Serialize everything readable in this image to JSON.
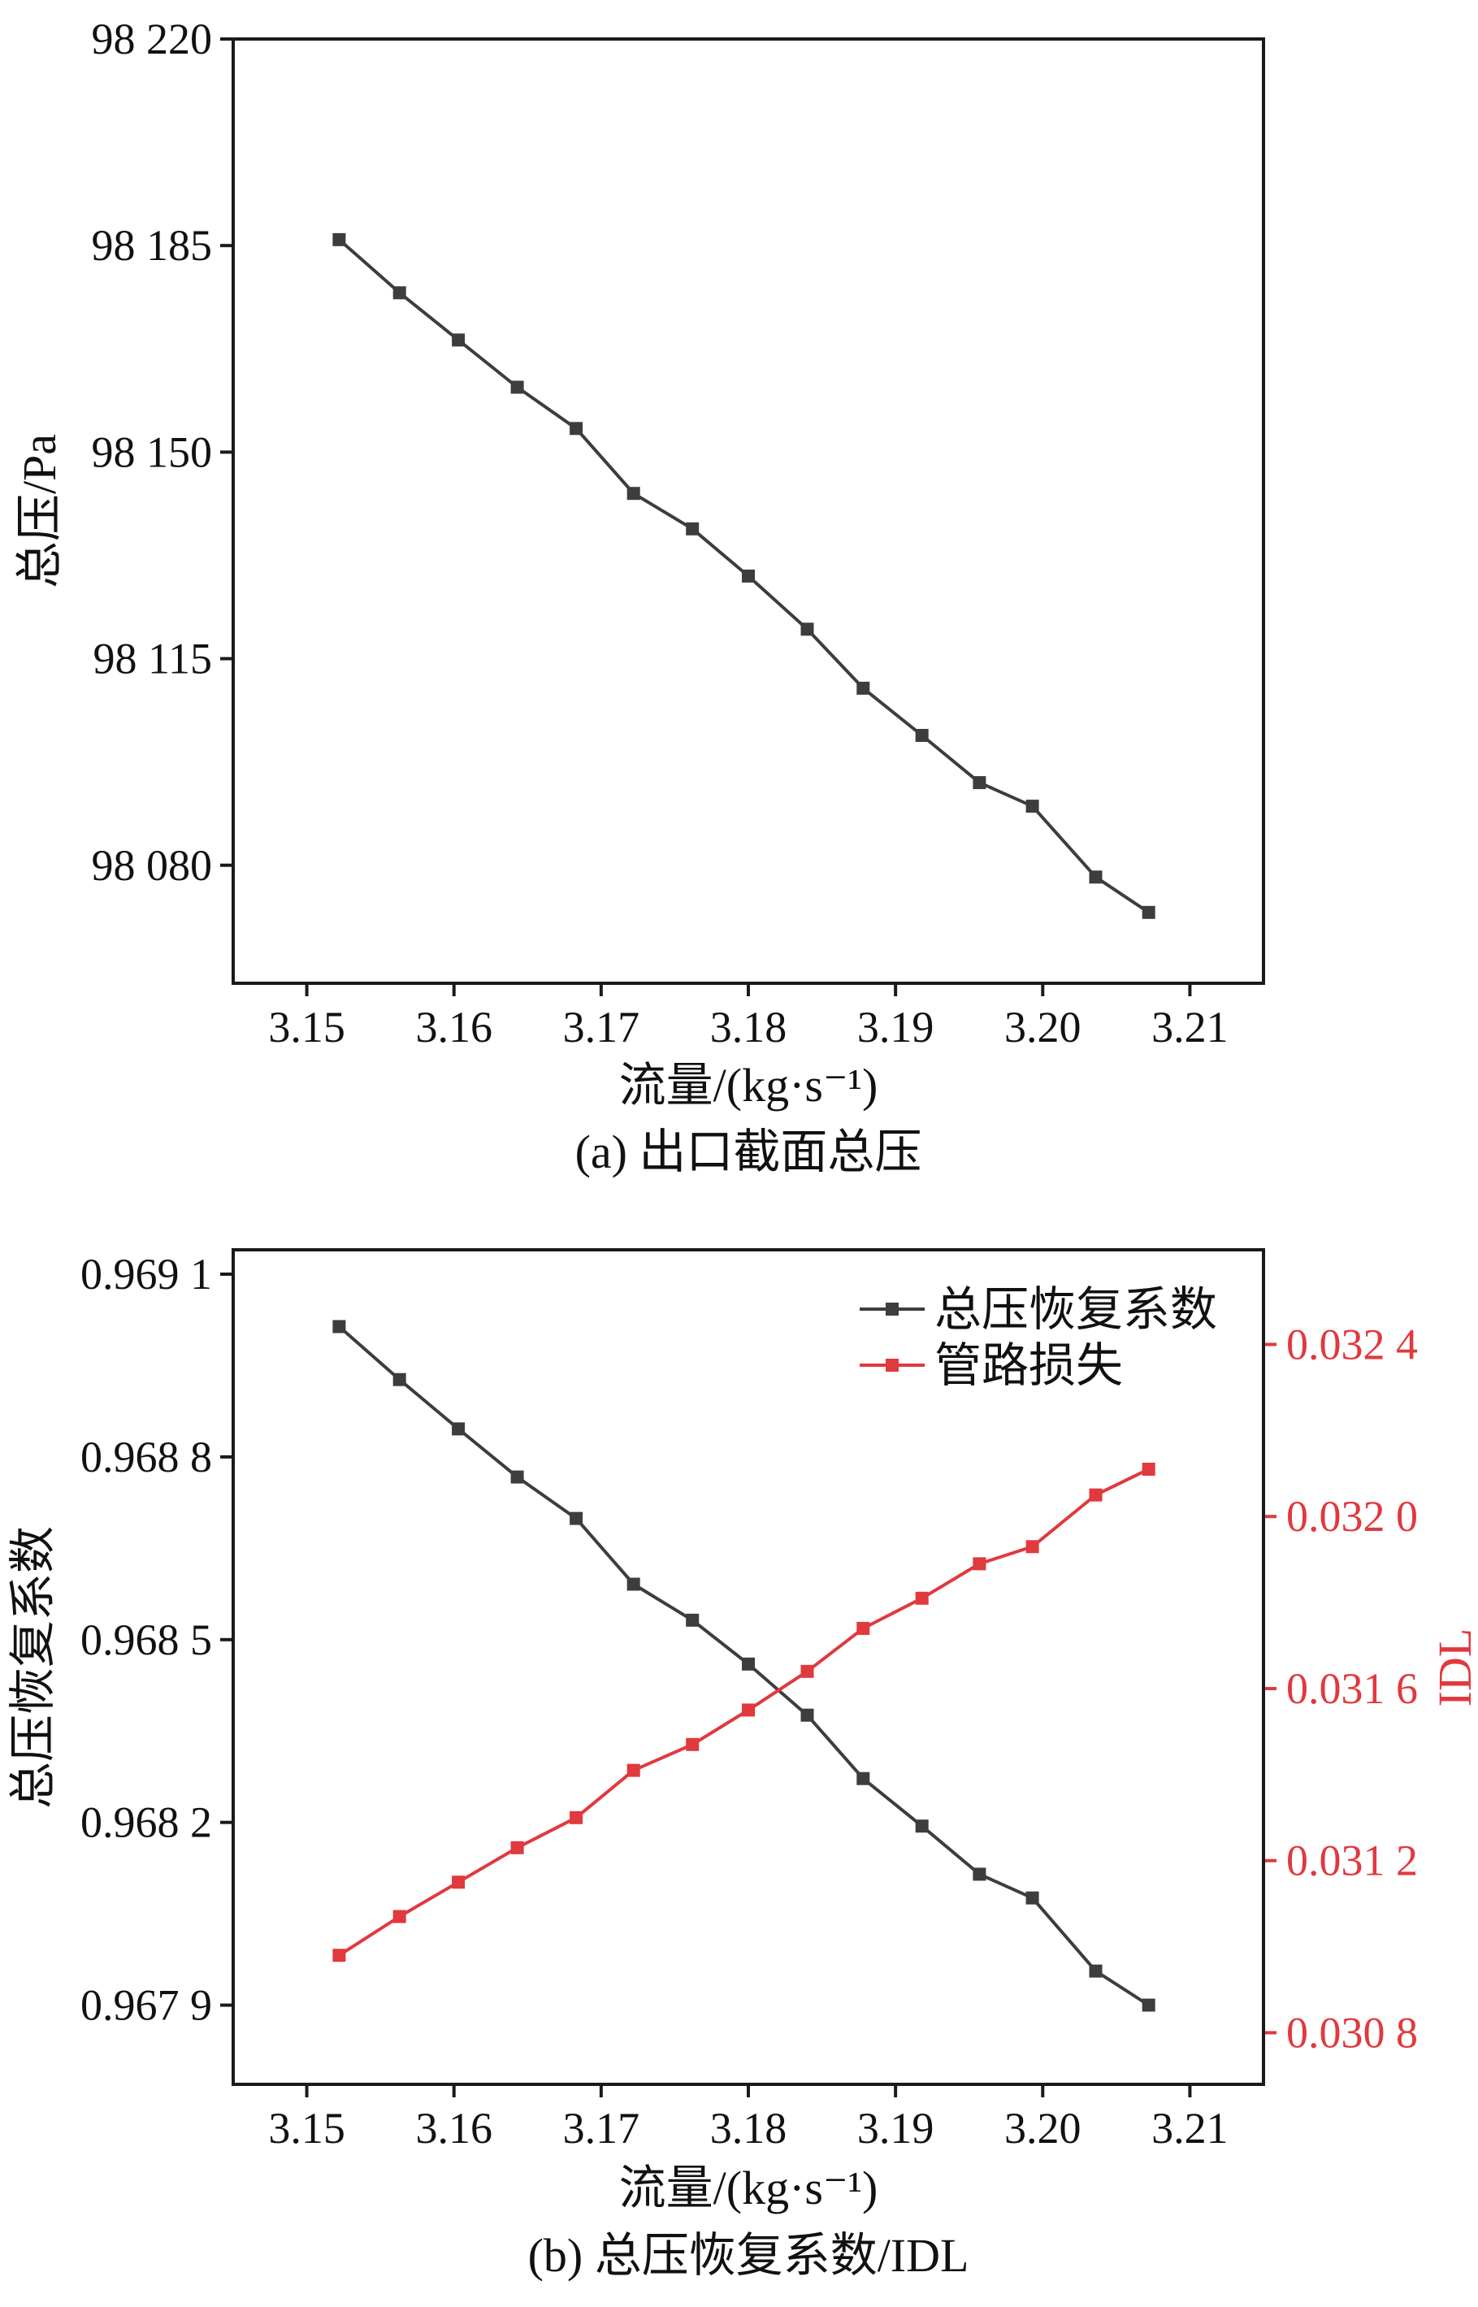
{
  "charts": [
    {
      "id": "a",
      "caption": "(a) 出口截面总压",
      "chart_data": {
        "type": "line",
        "xlabel": "流量/(kg·s⁻¹)",
        "ylabel": "总压/Pa",
        "xlim": [
          3.145,
          3.215
        ],
        "ylim": [
          98060,
          98220
        ],
        "xticks": [
          3.15,
          3.16,
          3.17,
          3.18,
          3.19,
          3.2,
          3.21
        ],
        "xtick_labels": [
          "3.15",
          "3.16",
          "3.17",
          "3.18",
          "3.19",
          "3.20",
          "3.21"
        ],
        "yticks": [
          98080,
          98115,
          98150,
          98185,
          98220
        ],
        "ytick_labels": [
          "98 080",
          "98 115",
          "98 150",
          "98 185",
          "98 220"
        ],
        "grid": false,
        "series": [
          {
            "color": "#3d3d3d",
            "marker": "square",
            "x": [
              3.1522,
              3.1563,
              3.1603,
              3.1643,
              3.1683,
              3.1722,
              3.1762,
              3.18,
              3.184,
              3.1878,
              3.1918,
              3.1957,
              3.1993,
              3.2036,
              3.2072
            ],
            "y": [
              98186,
              98177,
              98169,
              98161,
              98154,
              98143,
              98137,
              98129,
              98120,
              98110,
              98102,
              98094,
              98090,
              98078,
              98072
            ]
          }
        ]
      }
    },
    {
      "id": "b",
      "caption": "(b) 总压恢复系数/IDL",
      "chart_data": {
        "type": "line",
        "xlabel": "流量/(kg·s⁻¹)",
        "ylabel": "总压恢复系数",
        "y2label": "IDL",
        "xlim": [
          3.145,
          3.215
        ],
        "ylim": [
          0.96777,
          0.96914
        ],
        "y2lim": [
          0.03068,
          0.03262
        ],
        "xticks": [
          3.15,
          3.16,
          3.17,
          3.18,
          3.19,
          3.2,
          3.21
        ],
        "xtick_labels": [
          "3.15",
          "3.16",
          "3.17",
          "3.18",
          "3.19",
          "3.20",
          "3.21"
        ],
        "yticks": [
          0.9679,
          0.9682,
          0.9685,
          0.9688,
          0.9691
        ],
        "ytick_labels": [
          "0.967 9",
          "0.968 2",
          "0.968 5",
          "0.968 8",
          "0.969 1"
        ],
        "y2ticks": [
          0.0308,
          0.0312,
          0.0316,
          0.032,
          0.0324
        ],
        "y2tick_labels": [
          "0.030 8",
          "0.031 2",
          "0.031 6",
          "0.032 0",
          "0.032 4"
        ],
        "grid": false,
        "legend_position": "top-right",
        "series": [
          {
            "name": "总压恢复系数",
            "axis": "left",
            "color": "#3d3d3d",
            "marker": "square",
            "x": [
              3.1522,
              3.1563,
              3.1603,
              3.1643,
              3.1683,
              3.1722,
              3.1762,
              3.18,
              3.184,
              3.1878,
              3.1918,
              3.1957,
              3.1993,
              3.2036,
              3.2072
            ],
            "y": [
              0.969014,
              0.968927,
              0.968846,
              0.968767,
              0.968699,
              0.968591,
              0.968532,
              0.96846,
              0.968376,
              0.968272,
              0.968194,
              0.968115,
              0.968076,
              0.967956,
              0.9679
            ]
          },
          {
            "name": "管路损失",
            "axis": "right",
            "color": "#e0393e",
            "marker": "square",
            "x": [
              3.1522,
              3.1563,
              3.1603,
              3.1643,
              3.1683,
              3.1722,
              3.1762,
              3.18,
              3.184,
              3.1878,
              3.1918,
              3.1957,
              3.1993,
              3.2036,
              3.2072
            ],
            "y": [
              0.03098,
              0.03107,
              0.03115,
              0.03123,
              0.0313,
              0.03141,
              0.03147,
              0.03155,
              0.03164,
              0.03174,
              0.03181,
              0.03189,
              0.03193,
              0.03205,
              0.03211
            ]
          }
        ]
      }
    }
  ]
}
